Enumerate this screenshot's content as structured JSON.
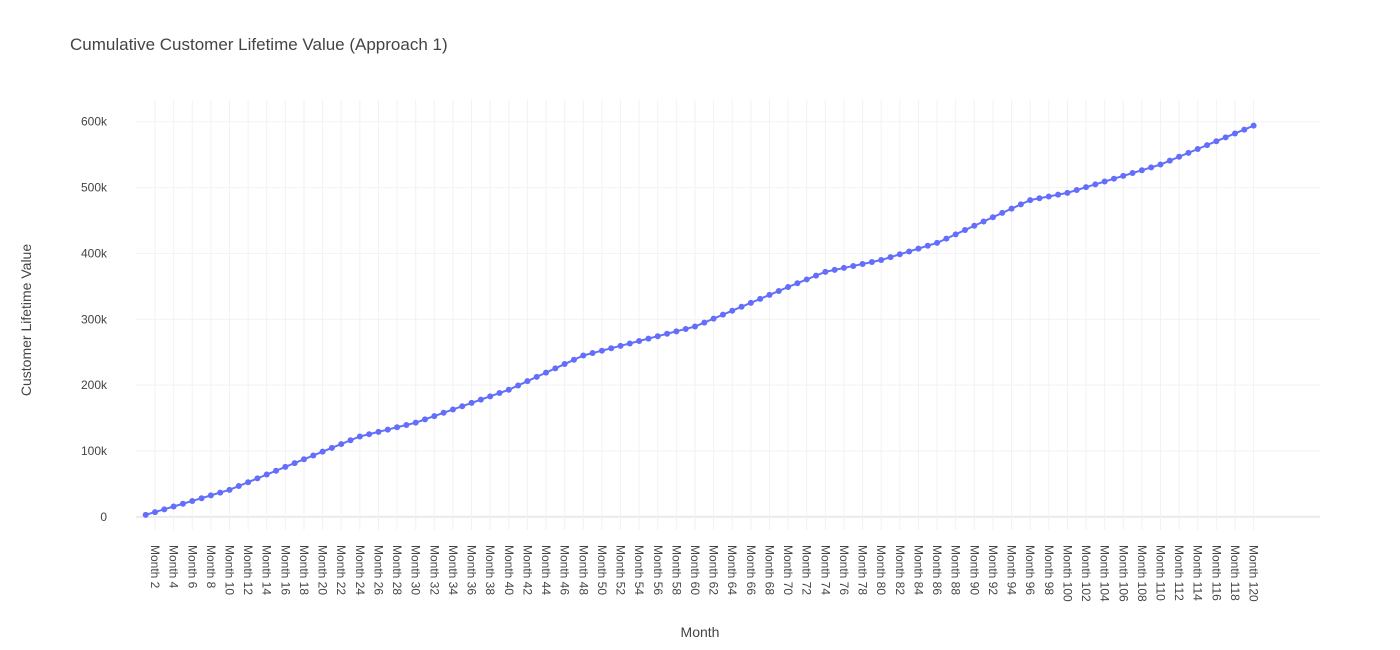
{
  "chart_data": {
    "type": "line",
    "title": "Cumulative Customer Lifetime Value (Approach 1)",
    "x_label": "Month",
    "y_label": "Customer Lifetime Value",
    "categories": [
      null,
      "Month 2",
      null,
      "Month 4",
      null,
      "Month 6",
      null,
      "Month 8",
      null,
      "Month 10",
      null,
      "Month 12",
      null,
      "Month 14",
      null,
      "Month 16",
      null,
      "Month 18",
      null,
      "Month 20",
      null,
      "Month 22",
      null,
      "Month 24",
      null,
      "Month 26",
      null,
      "Month 28",
      null,
      "Month 30",
      null,
      "Month 32",
      null,
      "Month 34",
      null,
      "Month 36",
      null,
      "Month 38",
      null,
      "Month 40",
      null,
      "Month 42",
      null,
      "Month 44",
      null,
      "Month 46",
      null,
      "Month 48",
      null,
      "Month 50",
      null,
      "Month 52",
      null,
      "Month 54",
      null,
      "Month 56",
      null,
      "Month 58",
      null,
      "Month 60",
      null,
      "Month 62",
      null,
      "Month 64",
      null,
      "Month 66",
      null,
      "Month 68",
      null,
      "Month 70",
      null,
      "Month 72",
      null,
      "Month 74",
      null,
      "Month 76",
      null,
      "Month 78",
      null,
      "Month 80",
      null,
      "Month 82",
      null,
      "Month 84",
      null,
      "Month 86",
      null,
      "Month 88",
      null,
      "Month 90",
      null,
      "Month 92",
      null,
      "Month 94",
      null,
      "Month 96",
      null,
      "Month 98",
      null,
      "Month 100",
      null,
      "Month 102",
      null,
      "Month 104",
      null,
      "Month 106",
      null,
      "Month 108",
      null,
      "Month 110",
      null,
      "Month 112",
      null,
      "Month 114",
      null,
      "Month 116",
      null,
      "Month 118",
      null,
      "Month 120"
    ],
    "values": [
      3000,
      7200,
      11400,
      15700,
      19900,
      24100,
      28300,
      32600,
      36800,
      41000,
      46800,
      52600,
      58400,
      64200,
      70000,
      75800,
      81600,
      87400,
      93200,
      99000,
      104800,
      110500,
      116300,
      122000,
      125500,
      129000,
      132500,
      136000,
      139500,
      143000,
      148000,
      153000,
      158000,
      163000,
      168000,
      173000,
      178000,
      183000,
      188000,
      193000,
      199500,
      206000,
      212500,
      219000,
      225500,
      232000,
      238500,
      245000,
      248700,
      252300,
      256000,
      259700,
      263300,
      267000,
      270700,
      274300,
      278000,
      281700,
      285300,
      289000,
      295000,
      301000,
      307000,
      313000,
      319000,
      325000,
      331000,
      337000,
      343000,
      349000,
      354800,
      360500,
      366300,
      372000,
      375000,
      378000,
      381000,
      384000,
      387000,
      390000,
      394300,
      398700,
      403000,
      407300,
      411700,
      416000,
      422500,
      429000,
      435500,
      442000,
      448500,
      455000,
      461500,
      468000,
      474500,
      481000,
      483800,
      486500,
      489300,
      492000,
      496300,
      500600,
      504900,
      509200,
      513500,
      517800,
      522100,
      526400,
      530700,
      535000,
      540900,
      546800,
      552700,
      558600,
      564500,
      570400,
      576300,
      582200,
      588100,
      594000
    ],
    "color": "#636efa",
    "ylim": [
      -20000,
      633000
    ],
    "yticks": [
      0,
      {
        "value": 100000,
        "label": "100k"
      },
      {
        "value": 200000,
        "label": "200k"
      },
      {
        "value": 300000,
        "label": "300k"
      },
      {
        "value": 400000,
        "label": "400k"
      },
      {
        "value": 500000,
        "label": "500k"
      },
      {
        "value": 600000,
        "label": "600k"
      }
    ],
    "grid": true
  }
}
